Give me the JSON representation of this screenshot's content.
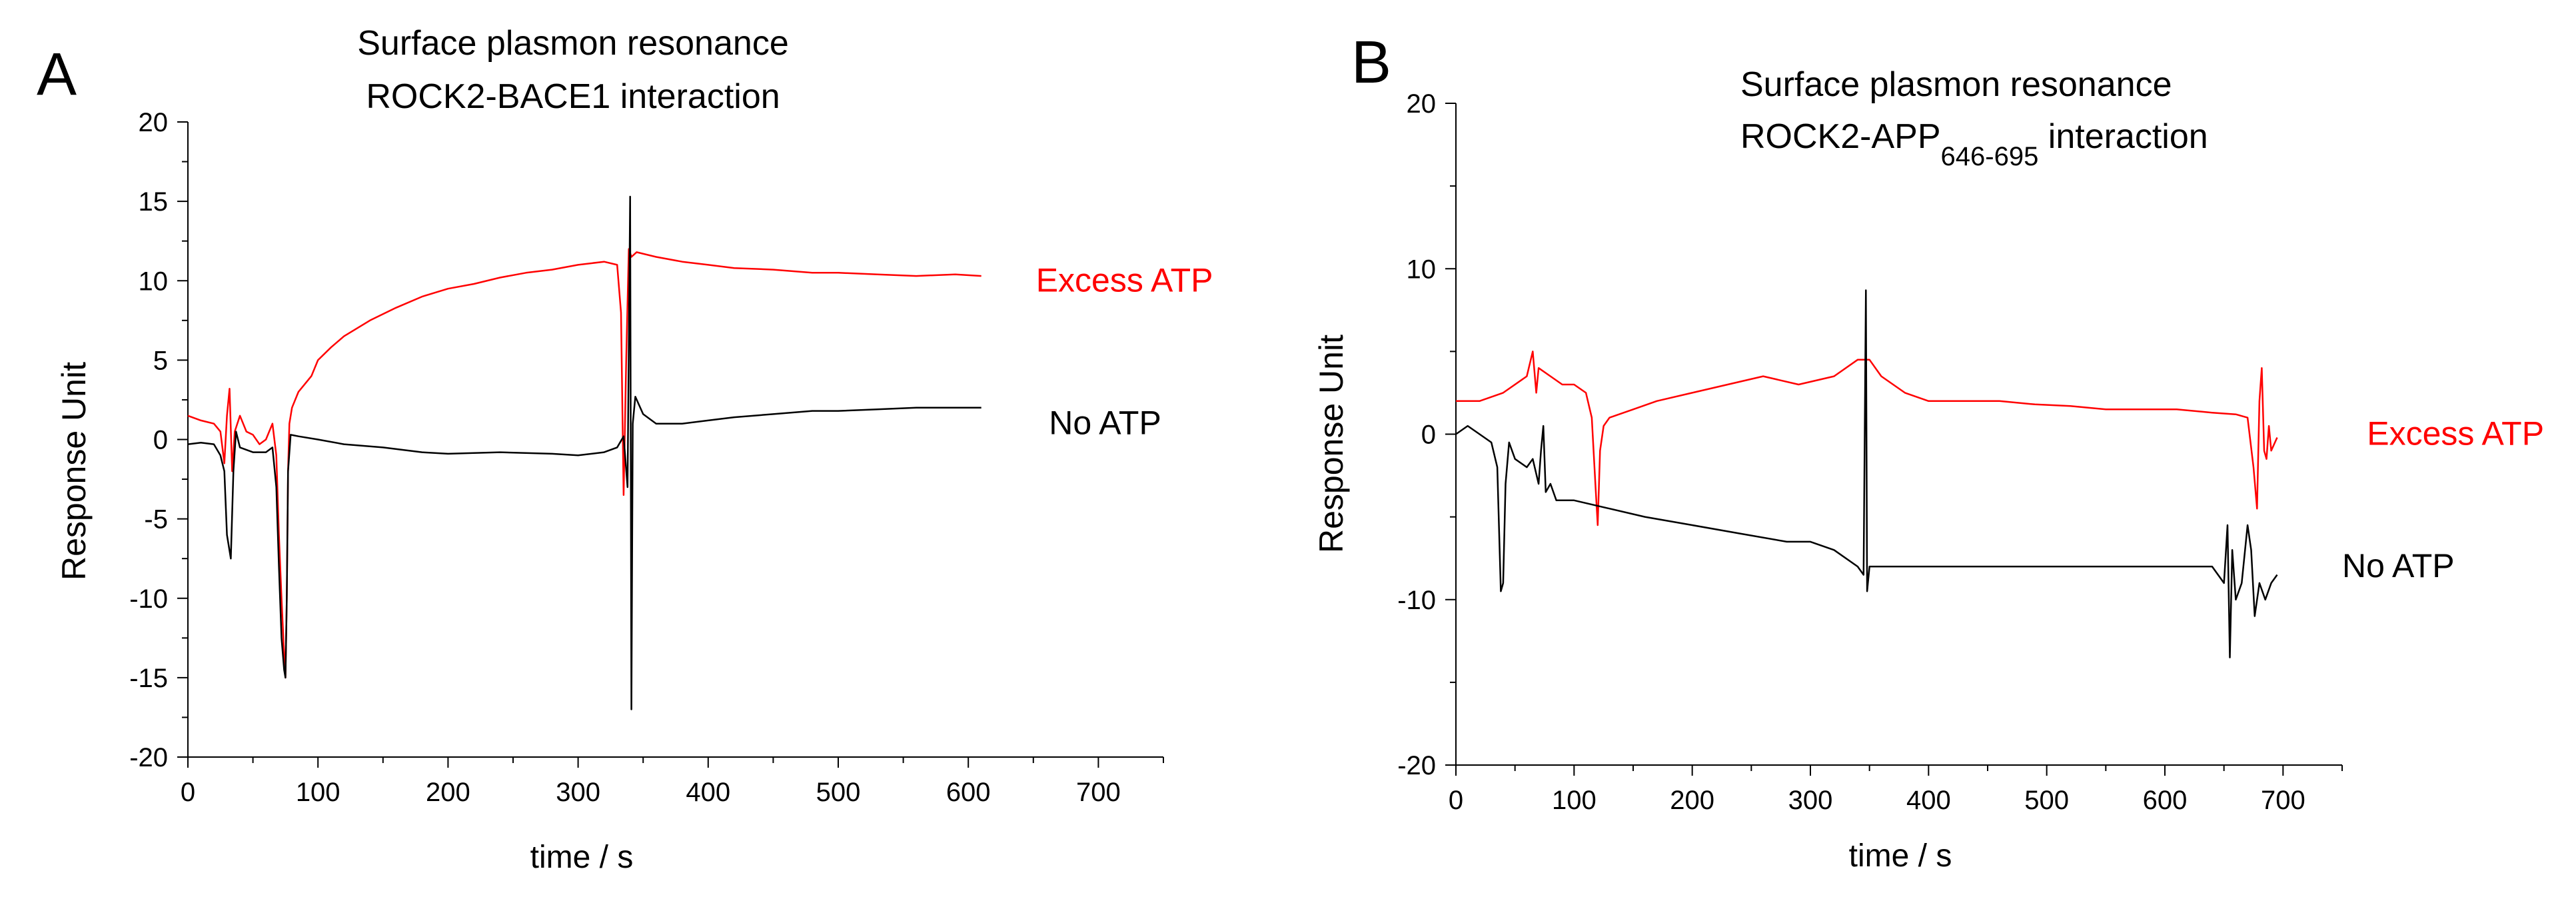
{
  "chart_data": [
    {
      "type": "line",
      "panel_label": "A",
      "title_line1": "Surface plasmon resonance",
      "title_line2": "ROCK2-BACE1 interaction",
      "title_sub": "",
      "title_after": "",
      "xlabel": "time / s",
      "ylabel": "Response Unit",
      "xlim": [
        0,
        750
      ],
      "ylim": [
        -20,
        20
      ],
      "xticks": [
        0,
        100,
        200,
        300,
        400,
        500,
        600,
        700
      ],
      "yticks": [
        -20,
        -15,
        -10,
        -5,
        0,
        5,
        10,
        15,
        20
      ],
      "grid": false,
      "series": [
        {
          "name": "Excess ATP",
          "color": "#ff0000",
          "points": [
            [
              0,
              1.5
            ],
            [
              10,
              1.2
            ],
            [
              20,
              1.0
            ],
            [
              25,
              0.5
            ],
            [
              28,
              -1.5
            ],
            [
              30,
              1.5
            ],
            [
              32,
              3.2
            ],
            [
              34,
              -2.0
            ],
            [
              36,
              0.5
            ],
            [
              40,
              1.5
            ],
            [
              45,
              0.5
            ],
            [
              50,
              0.3
            ],
            [
              55,
              -0.3
            ],
            [
              60,
              0.0
            ],
            [
              65,
              1.0
            ],
            [
              68,
              -1.0
            ],
            [
              70,
              -6.0
            ],
            [
              72,
              -10.0
            ],
            [
              74,
              -13.5
            ],
            [
              75,
              -15.0
            ],
            [
              76,
              -10.0
            ],
            [
              77,
              -2.0
            ],
            [
              78,
              1.0
            ],
            [
              80,
              2.0
            ],
            [
              85,
              3.0
            ],
            [
              90,
              3.5
            ],
            [
              95,
              4.0
            ],
            [
              100,
              5.0
            ],
            [
              110,
              5.8
            ],
            [
              120,
              6.5
            ],
            [
              140,
              7.5
            ],
            [
              160,
              8.3
            ],
            [
              180,
              9.0
            ],
            [
              200,
              9.5
            ],
            [
              220,
              9.8
            ],
            [
              240,
              10.2
            ],
            [
              260,
              10.5
            ],
            [
              280,
              10.7
            ],
            [
              300,
              11.0
            ],
            [
              320,
              11.2
            ],
            [
              330,
              11.0
            ],
            [
              333,
              8.0
            ],
            [
              335,
              -3.5
            ],
            [
              337,
              5.0
            ],
            [
              339,
              12.0
            ],
            [
              341,
              11.5
            ],
            [
              345,
              11.8
            ],
            [
              360,
              11.5
            ],
            [
              380,
              11.2
            ],
            [
              400,
              11.0
            ],
            [
              420,
              10.8
            ],
            [
              450,
              10.7
            ],
            [
              480,
              10.5
            ],
            [
              500,
              10.5
            ],
            [
              530,
              10.4
            ],
            [
              560,
              10.3
            ],
            [
              590,
              10.4
            ],
            [
              610,
              10.3
            ]
          ]
        },
        {
          "name": "No ATP",
          "color": "#000000",
          "points": [
            [
              0,
              -0.3
            ],
            [
              10,
              -0.2
            ],
            [
              20,
              -0.3
            ],
            [
              25,
              -1.0
            ],
            [
              28,
              -2.0
            ],
            [
              30,
              -6.0
            ],
            [
              33,
              -7.5
            ],
            [
              35,
              -2.0
            ],
            [
              37,
              0.5
            ],
            [
              40,
              -0.5
            ],
            [
              50,
              -0.8
            ],
            [
              60,
              -0.8
            ],
            [
              65,
              -0.5
            ],
            [
              68,
              -3.0
            ],
            [
              70,
              -8.0
            ],
            [
              72,
              -12.5
            ],
            [
              74,
              -14.5
            ],
            [
              75,
              -15.0
            ],
            [
              76,
              -10.0
            ],
            [
              77,
              -2.0
            ],
            [
              79,
              0.3
            ],
            [
              85,
              0.2
            ],
            [
              100,
              0.0
            ],
            [
              120,
              -0.3
            ],
            [
              150,
              -0.5
            ],
            [
              180,
              -0.8
            ],
            [
              200,
              -0.9
            ],
            [
              240,
              -0.8
            ],
            [
              280,
              -0.9
            ],
            [
              300,
              -1.0
            ],
            [
              320,
              -0.8
            ],
            [
              330,
              -0.5
            ],
            [
              335,
              0.2
            ],
            [
              338,
              -3.0
            ],
            [
              340,
              15.3
            ],
            [
              341,
              -17.0
            ],
            [
              342,
              1.0
            ],
            [
              344,
              2.7
            ],
            [
              350,
              1.6
            ],
            [
              360,
              1.0
            ],
            [
              380,
              1.0
            ],
            [
              400,
              1.2
            ],
            [
              420,
              1.4
            ],
            [
              450,
              1.6
            ],
            [
              480,
              1.8
            ],
            [
              500,
              1.8
            ],
            [
              530,
              1.9
            ],
            [
              560,
              2.0
            ],
            [
              590,
              2.0
            ],
            [
              610,
              2.0
            ]
          ]
        }
      ],
      "annotations": [
        {
          "text": "Excess ATP",
          "color": "#ff0000",
          "at": [
            652,
            10
          ]
        },
        {
          "text": "No ATP",
          "color": "#000000",
          "at": [
            662,
            1
          ]
        }
      ]
    },
    {
      "type": "line",
      "panel_label": "B",
      "title_line1": "Surface plasmon resonance",
      "title_line2": "ROCK2-APP",
      "title_sub": "646-695",
      "title_after": " interaction",
      "xlabel": "time / s",
      "ylabel": "Response Unit",
      "xlim": [
        0,
        750
      ],
      "ylim": [
        -20,
        20
      ],
      "xticks": [
        0,
        100,
        200,
        300,
        400,
        500,
        600,
        700
      ],
      "yticks": [
        -20,
        -10,
        0,
        10,
        20
      ],
      "grid": false,
      "series": [
        {
          "name": "Excess ATP",
          "color": "#ff0000",
          "points": [
            [
              0,
              2.0
            ],
            [
              20,
              2.0
            ],
            [
              40,
              2.5
            ],
            [
              60,
              3.5
            ],
            [
              65,
              5.0
            ],
            [
              68,
              2.5
            ],
            [
              70,
              4.0
            ],
            [
              80,
              3.5
            ],
            [
              90,
              3.0
            ],
            [
              100,
              3.0
            ],
            [
              110,
              2.5
            ],
            [
              115,
              1.0
            ],
            [
              118,
              -3.0
            ],
            [
              120,
              -5.5
            ],
            [
              122,
              -1.0
            ],
            [
              125,
              0.5
            ],
            [
              130,
              1.0
            ],
            [
              150,
              1.5
            ],
            [
              170,
              2.0
            ],
            [
              200,
              2.5
            ],
            [
              230,
              3.0
            ],
            [
              260,
              3.5
            ],
            [
              290,
              3.0
            ],
            [
              320,
              3.5
            ],
            [
              340,
              4.5
            ],
            [
              350,
              4.5
            ],
            [
              360,
              3.5
            ],
            [
              380,
              2.5
            ],
            [
              400,
              2.0
            ],
            [
              430,
              2.0
            ],
            [
              460,
              2.0
            ],
            [
              490,
              1.8
            ],
            [
              520,
              1.7
            ],
            [
              550,
              1.5
            ],
            [
              580,
              1.5
            ],
            [
              610,
              1.5
            ],
            [
              640,
              1.3
            ],
            [
              660,
              1.2
            ],
            [
              670,
              1.0
            ],
            [
              675,
              -2.0
            ],
            [
              678,
              -4.5
            ],
            [
              680,
              2.0
            ],
            [
              682,
              4.0
            ],
            [
              684,
              -1.0
            ],
            [
              686,
              -1.5
            ],
            [
              688,
              0.5
            ],
            [
              690,
              -1.0
            ],
            [
              695,
              -0.2
            ]
          ]
        },
        {
          "name": "No ATP",
          "color": "#000000",
          "points": [
            [
              0,
              0.0
            ],
            [
              10,
              0.5
            ],
            [
              20,
              0.0
            ],
            [
              30,
              -0.5
            ],
            [
              35,
              -2.0
            ],
            [
              38,
              -9.5
            ],
            [
              40,
              -9.0
            ],
            [
              42,
              -3.0
            ],
            [
              45,
              -0.5
            ],
            [
              50,
              -1.5
            ],
            [
              60,
              -2.0
            ],
            [
              65,
              -1.5
            ],
            [
              70,
              -3.0
            ],
            [
              72,
              -1.0
            ],
            [
              74,
              0.5
            ],
            [
              76,
              -3.5
            ],
            [
              80,
              -3.0
            ],
            [
              85,
              -4.0
            ],
            [
              100,
              -4.0
            ],
            [
              130,
              -4.5
            ],
            [
              160,
              -5.0
            ],
            [
              200,
              -5.5
            ],
            [
              240,
              -6.0
            ],
            [
              280,
              -6.5
            ],
            [
              300,
              -6.5
            ],
            [
              320,
              -7.0
            ],
            [
              340,
              -8.0
            ],
            [
              345,
              -8.5
            ],
            [
              347,
              8.7
            ],
            [
              348,
              -9.5
            ],
            [
              350,
              -8.0
            ],
            [
              380,
              -8.0
            ],
            [
              420,
              -8.0
            ],
            [
              460,
              -8.0
            ],
            [
              500,
              -8.0
            ],
            [
              540,
              -8.0
            ],
            [
              580,
              -8.0
            ],
            [
              620,
              -8.0
            ],
            [
              640,
              -8.0
            ],
            [
              650,
              -9.0
            ],
            [
              653,
              -5.5
            ],
            [
              655,
              -13.5
            ],
            [
              657,
              -7.0
            ],
            [
              660,
              -10.0
            ],
            [
              665,
              -9.0
            ],
            [
              670,
              -5.5
            ],
            [
              673,
              -7.0
            ],
            [
              676,
              -11.0
            ],
            [
              680,
              -9.0
            ],
            [
              685,
              -10.0
            ],
            [
              690,
              -9.0
            ],
            [
              695,
              -8.5
            ]
          ]
        }
      ],
      "annotations": [
        {
          "text": "Excess ATP",
          "color": "#ff0000",
          "at": [
            771,
            0
          ]
        },
        {
          "text": "No ATP",
          "color": "#000000",
          "at": [
            750,
            -8
          ]
        }
      ]
    }
  ]
}
